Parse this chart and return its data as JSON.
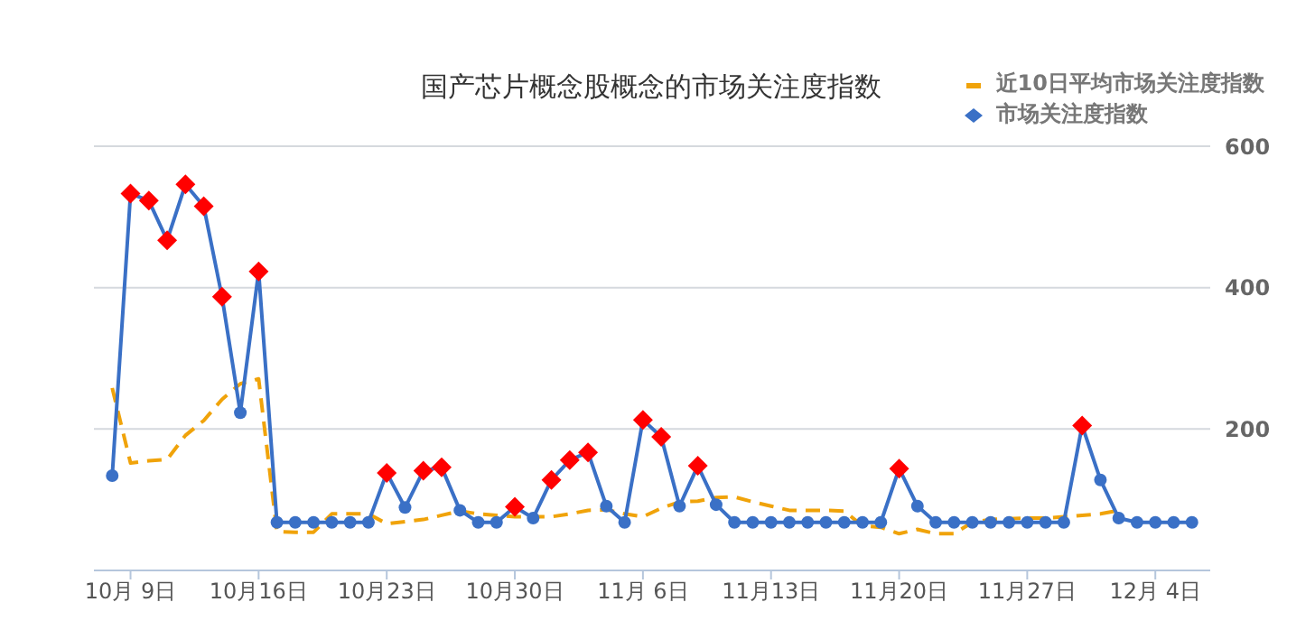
{
  "chart_data": {
    "type": "line",
    "title": "国产芯片概念股概念的市场关注度指数",
    "x": [
      "--10-08",
      "--10-09",
      "--10-10",
      "--10-11",
      "--10-12",
      "--10-13",
      "--10-14",
      "--10-15",
      "--10-16",
      "--10-17",
      "--10-18",
      "--10-19",
      "--10-20",
      "--10-21",
      "--10-22",
      "--10-23",
      "--10-24",
      "--10-25",
      "--10-26",
      "--10-27",
      "--10-28",
      "--10-29",
      "--10-30",
      "--10-31",
      "--11-01",
      "--11-02",
      "--11-03",
      "--11-04",
      "--11-05",
      "--11-06",
      "--11-07",
      "--11-08",
      "--11-09",
      "--11-10",
      "--11-11",
      "--11-12",
      "--11-13",
      "--11-14",
      "--11-15",
      "--11-16",
      "--11-17",
      "--11-18",
      "--11-19",
      "--11-20",
      "--11-21",
      "--11-22",
      "--11-23",
      "--11-24",
      "--11-25",
      "--11-26",
      "--11-27",
      "--11-28",
      "--11-29",
      "--11-30",
      "--12-01",
      "--12-02",
      "--12-03",
      "--12-04",
      "--12-05",
      "--12-06"
    ],
    "series": [
      {
        "name": "近10日平均市场关注度指数",
        "color": "#f0a30a",
        "marker": "none",
        "line_style": "dashed",
        "values": [
          258,
          152,
          155,
          157,
          191,
          212,
          242,
          264,
          271,
          55,
          54,
          54,
          80,
          80,
          80,
          66,
          69,
          72,
          78,
          84,
          80,
          78,
          76,
          76,
          76,
          80,
          85,
          86,
          80,
          76,
          88,
          97,
          98,
          103,
          104,
          97,
          91,
          85,
          85,
          85,
          84,
          63,
          61,
          52,
          58,
          52,
          52,
          68,
          72,
          73,
          74,
          74,
          76,
          78,
          80,
          85,
          null,
          null,
          null,
          null
        ]
      },
      {
        "name": "市场关注度指数",
        "color": "#3a70c6",
        "marker": "circle",
        "values": [
          134,
          533,
          523,
          467,
          546,
          515,
          387,
          223,
          423,
          68,
          68,
          68,
          68,
          68,
          68,
          138,
          89,
          141,
          146,
          85,
          68,
          68,
          90,
          74,
          128,
          156,
          167,
          91,
          68,
          213,
          189,
          91,
          148,
          93,
          68,
          68,
          68,
          68,
          68,
          68,
          68,
          68,
          68,
          144,
          91,
          68,
          68,
          68,
          68,
          68,
          68,
          68,
          68,
          205,
          128,
          74,
          68,
          68,
          68,
          68
        ]
      },
      {
        "type": "scatter",
        "color": "#ff0000",
        "marker": "diamond",
        "values": [
          null,
          533,
          523,
          467,
          546,
          515,
          387,
          null,
          423,
          null,
          null,
          null,
          null,
          null,
          null,
          138,
          null,
          141,
          146,
          null,
          null,
          null,
          90,
          null,
          128,
          156,
          167,
          null,
          null,
          213,
          189,
          null,
          148,
          null,
          null,
          null,
          null,
          null,
          null,
          null,
          null,
          null,
          null,
          144,
          null,
          null,
          null,
          null,
          null,
          null,
          null,
          null,
          null,
          205,
          null,
          null,
          null,
          null,
          null,
          null
        ]
      }
    ],
    "xlim": [
      "--10-07",
      "--12-07"
    ],
    "xticks": [
      {
        "value": "--10-09",
        "label": "10月 9日"
      },
      {
        "value": "--10-16",
        "label": "10月16日"
      },
      {
        "value": "--10-23",
        "label": "10月23日"
      },
      {
        "value": "--10-30",
        "label": "10月30日"
      },
      {
        "value": "--11-06",
        "label": "11月 6日"
      },
      {
        "value": "--11-13",
        "label": "11月13日"
      },
      {
        "value": "--11-20",
        "label": "11月20日"
      },
      {
        "value": "--11-27",
        "label": "11月27日"
      },
      {
        "value": "--12-04",
        "label": "12月 4日"
      }
    ],
    "ylim": [
      0,
      600
    ],
    "yticks": [
      {
        "value": 0,
        "label": null
      },
      200,
      400,
      600
    ],
    "grid": "y",
    "legend": "top right"
  }
}
